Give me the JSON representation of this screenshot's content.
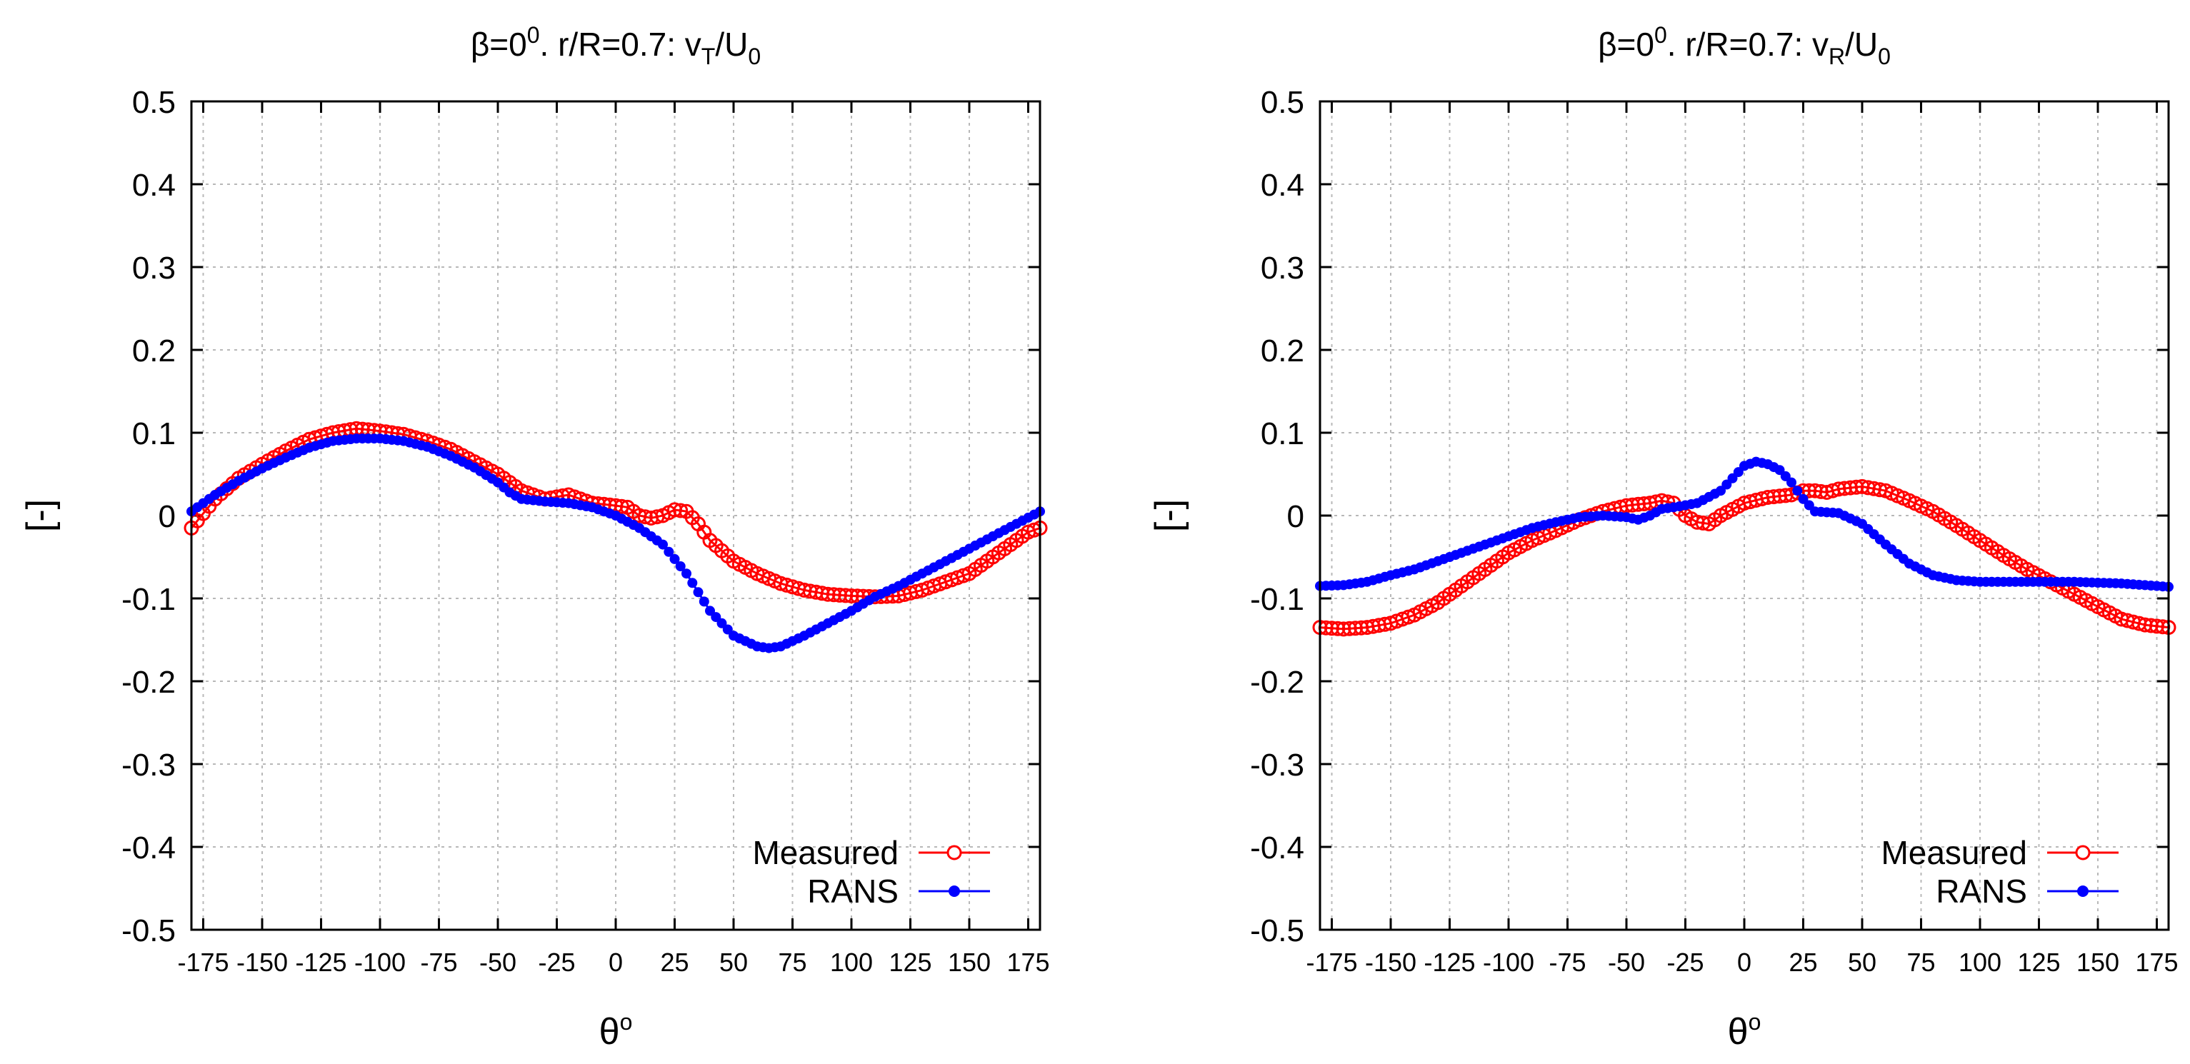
{
  "chart_data": [
    {
      "type": "scatter",
      "title_parts": {
        "beta": "β=0",
        "beta_sup": "0",
        "rest": ". r/R=0.7: v",
        "sub1": "T",
        "slash": "/U",
        "sub2": "0"
      },
      "title": "β=0⁰. r/R=0.7: vT/U0",
      "xlabel": {
        "main": "θ",
        "sup": "o"
      },
      "ylabel": "[-]",
      "xlim": [
        -180,
        180
      ],
      "ylim": [
        -0.5,
        0.5
      ],
      "grid": true,
      "legend_position": "bottom-right",
      "x_ticks": [
        "-175",
        "-150",
        "-125",
        "-100",
        "-75",
        "-50",
        "-25",
        "0",
        "25",
        "50",
        "75",
        "100",
        "125",
        "150",
        "175"
      ],
      "y_ticks": [
        "0.5",
        "0.4",
        "0.3",
        "0.2",
        "0.1",
        "0",
        "-0.1",
        "-0.2",
        "-0.3",
        "-0.4",
        "-0.5"
      ],
      "series": [
        {
          "name": "Measured",
          "color": "#ff0000",
          "marker": "open-circle",
          "x": [
            -180,
            -170,
            -160,
            -150,
            -140,
            -130,
            -120,
            -110,
            -100,
            -90,
            -80,
            -70,
            -60,
            -50,
            -40,
            -30,
            -20,
            -10,
            0,
            5,
            10,
            15,
            20,
            25,
            30,
            35,
            40,
            50,
            60,
            70,
            80,
            90,
            100,
            110,
            120,
            130,
            140,
            150,
            160,
            170,
            175,
            180
          ],
          "y": [
            -0.015,
            0.02,
            0.045,
            0.062,
            0.078,
            0.092,
            0.1,
            0.105,
            0.102,
            0.098,
            0.09,
            0.08,
            0.065,
            0.05,
            0.03,
            0.02,
            0.025,
            0.015,
            0.012,
            0.01,
            0.0,
            -0.003,
            0.0,
            0.007,
            0.005,
            -0.01,
            -0.03,
            -0.055,
            -0.07,
            -0.082,
            -0.09,
            -0.095,
            -0.097,
            -0.098,
            -0.097,
            -0.09,
            -0.08,
            -0.07,
            -0.05,
            -0.03,
            -0.02,
            -0.015
          ]
        },
        {
          "name": "RANS",
          "color": "#0000ff",
          "marker": "filled-circle",
          "x": [
            -180,
            -170,
            -160,
            -150,
            -140,
            -130,
            -120,
            -110,
            -100,
            -90,
            -80,
            -70,
            -60,
            -50,
            -45,
            -40,
            -30,
            -20,
            -10,
            0,
            10,
            20,
            30,
            40,
            50,
            60,
            65,
            70,
            80,
            90,
            100,
            110,
            120,
            130,
            140,
            150,
            160,
            170,
            180
          ],
          "y": [
            0.005,
            0.025,
            0.042,
            0.057,
            0.07,
            0.082,
            0.09,
            0.093,
            0.093,
            0.09,
            0.083,
            0.072,
            0.058,
            0.04,
            0.028,
            0.02,
            0.017,
            0.015,
            0.01,
            0.0,
            -0.015,
            -0.035,
            -0.07,
            -0.115,
            -0.145,
            -0.158,
            -0.16,
            -0.158,
            -0.145,
            -0.13,
            -0.115,
            -0.098,
            -0.085,
            -0.07,
            -0.055,
            -0.04,
            -0.025,
            -0.01,
            0.005
          ]
        }
      ]
    },
    {
      "type": "scatter",
      "title_parts": {
        "beta": "β=0",
        "beta_sup": "0",
        "rest": ". r/R=0.7: v",
        "sub1": "R",
        "slash": "/U",
        "sub2": "0"
      },
      "title": "β=0⁰. r/R=0.7: vR/U0",
      "xlabel": {
        "main": "θ",
        "sup": "o"
      },
      "ylabel": "[-]",
      "xlim": [
        -180,
        180
      ],
      "ylim": [
        -0.5,
        0.5
      ],
      "grid": true,
      "legend_position": "bottom-right",
      "x_ticks": [
        "-175",
        "-150",
        "-125",
        "-100",
        "-75",
        "-50",
        "-25",
        "0",
        "25",
        "50",
        "75",
        "100",
        "125",
        "150",
        "175"
      ],
      "y_ticks": [
        "0.5",
        "0.4",
        "0.3",
        "0.2",
        "0.1",
        "0",
        "-0.1",
        "-0.2",
        "-0.3",
        "-0.4",
        "-0.5"
      ],
      "series": [
        {
          "name": "Measured",
          "color": "#ff0000",
          "marker": "open-circle",
          "x": [
            -180,
            -170,
            -160,
            -150,
            -140,
            -130,
            -120,
            -110,
            -100,
            -90,
            -80,
            -70,
            -60,
            -50,
            -40,
            -35,
            -30,
            -25,
            -20,
            -15,
            -10,
            0,
            10,
            20,
            25,
            30,
            35,
            40,
            50,
            60,
            70,
            80,
            90,
            100,
            110,
            120,
            130,
            140,
            150,
            160,
            170,
            180
          ],
          "y": [
            -0.135,
            -0.137,
            -0.135,
            -0.13,
            -0.12,
            -0.105,
            -0.085,
            -0.065,
            -0.045,
            -0.03,
            -0.018,
            -0.005,
            0.005,
            0.012,
            0.015,
            0.018,
            0.015,
            0.0,
            -0.008,
            -0.01,
            0.0,
            0.015,
            0.022,
            0.025,
            0.03,
            0.03,
            0.028,
            0.032,
            0.035,
            0.03,
            0.018,
            0.005,
            -0.012,
            -0.03,
            -0.048,
            -0.065,
            -0.08,
            -0.095,
            -0.11,
            -0.125,
            -0.132,
            -0.135
          ]
        },
        {
          "name": "RANS",
          "color": "#0000ff",
          "marker": "filled-circle",
          "x": [
            -180,
            -170,
            -160,
            -150,
            -140,
            -130,
            -120,
            -110,
            -100,
            -90,
            -80,
            -70,
            -60,
            -50,
            -45,
            -40,
            -35,
            -30,
            -20,
            -10,
            -5,
            0,
            5,
            10,
            15,
            20,
            25,
            30,
            40,
            50,
            60,
            70,
            80,
            90,
            100,
            110,
            120,
            130,
            140,
            150,
            160,
            170,
            180
          ],
          "y": [
            -0.085,
            -0.084,
            -0.08,
            -0.072,
            -0.065,
            -0.055,
            -0.045,
            -0.035,
            -0.025,
            -0.015,
            -0.008,
            -0.002,
            0.0,
            -0.002,
            -0.005,
            0.0,
            0.008,
            0.01,
            0.015,
            0.03,
            0.045,
            0.06,
            0.065,
            0.062,
            0.055,
            0.04,
            0.02,
            0.005,
            0.003,
            -0.01,
            -0.035,
            -0.058,
            -0.072,
            -0.078,
            -0.08,
            -0.08,
            -0.08,
            -0.08,
            -0.08,
            -0.081,
            -0.082,
            -0.084,
            -0.086
          ]
        }
      ]
    }
  ]
}
